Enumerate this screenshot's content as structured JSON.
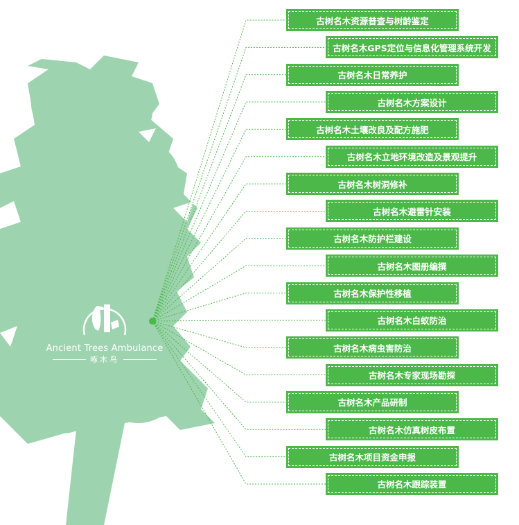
{
  "colors": {
    "tree": "#9dd3ae",
    "box": "#4cb849",
    "line": "#4cb849",
    "text": "#ffffff"
  },
  "logo": {
    "icon": "woodpecker-logo-icon",
    "english": "Ancient Trees Ambulance",
    "chinese": "啄木鸟"
  },
  "items": [
    "古树名木资源普查与树龄鉴定",
    "古树名木GPS定位与信息化管理系统开发",
    "古树名木日常养护",
    "古树名木方案设计",
    "古树名木土壤改良及配方施肥",
    "古树名木立地环境改造及景观提升",
    "古树名木树洞修补",
    "古树名木避雷针安装",
    "古树名木防护栏建设",
    "古树名木图册编撰",
    "古树名木保护性移植",
    "古树名木白蚁防治",
    "古树名木病虫害防治",
    "古树名木专家现场勘探",
    "古树名木产品研制",
    "古树名木仿真树皮布置",
    "古树名木项目资金申报",
    "古树名木跟踪装置"
  ]
}
